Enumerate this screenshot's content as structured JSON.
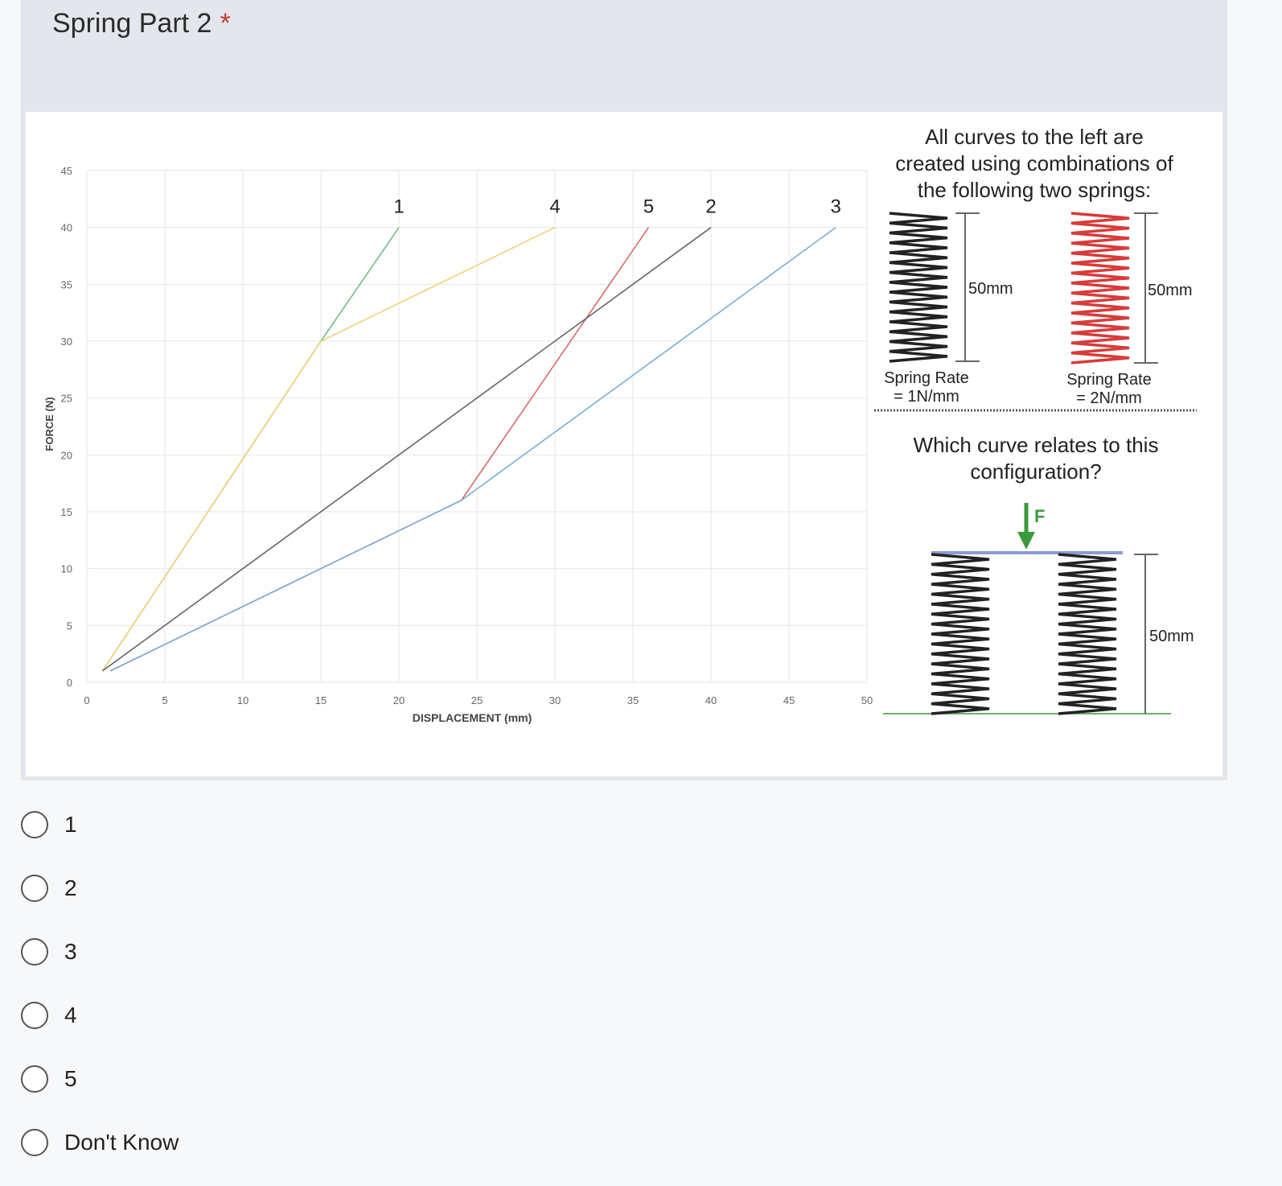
{
  "question": {
    "title": "Spring Part 2",
    "required_marker": "*"
  },
  "chart_data": {
    "type": "line",
    "xlabel": "DISPLACEMENT (mm)",
    "ylabel": "FORCE (N)",
    "xlim": [
      0,
      50
    ],
    "ylim": [
      0,
      45
    ],
    "x_ticks": [
      "0",
      "5",
      "10",
      "15",
      "20",
      "25",
      "30",
      "35",
      "40",
      "45",
      "50"
    ],
    "y_ticks": [
      "0",
      "5",
      "10",
      "15",
      "20",
      "25",
      "30",
      "35",
      "40",
      "45"
    ],
    "grid": true,
    "series": [
      {
        "name": "1",
        "color": "#6ebd85",
        "points": [
          [
            1,
            1
          ],
          [
            15,
            30
          ],
          [
            20,
            40
          ]
        ]
      },
      {
        "name": "4",
        "color": "#f0d27a",
        "points": [
          [
            1,
            1
          ],
          [
            15,
            30
          ],
          [
            30,
            40
          ]
        ]
      },
      {
        "name": "5",
        "color": "#d9696b",
        "points": [
          [
            1.5,
            1
          ],
          [
            24,
            16
          ],
          [
            36,
            40
          ]
        ]
      },
      {
        "name": "2",
        "color": "#666666",
        "points": [
          [
            1,
            1
          ],
          [
            40,
            40
          ]
        ]
      },
      {
        "name": "3",
        "color": "#7aaed8",
        "points": [
          [
            1.5,
            1
          ],
          [
            24,
            16
          ],
          [
            48,
            40
          ]
        ]
      }
    ]
  },
  "info": {
    "intro_lines": [
      "All curves to the left are",
      "created using combinations of",
      "the following two springs:"
    ],
    "spring_a": {
      "length": "50mm",
      "rate_line1": "Spring Rate",
      "rate_line2": "= 1N/mm",
      "color": "#222222"
    },
    "spring_b": {
      "length": "50mm",
      "rate_line1": "Spring Rate",
      "rate_line2": "= 2N/mm",
      "color": "#d93a3a"
    },
    "question_lines": [
      "Which curve relates to this",
      "configuration?"
    ],
    "force_label": "F",
    "config_length": "50mm",
    "colors": {
      "force_arrow": "#3c9a3c",
      "top_plate": "#8e9bd6",
      "ground": "#6ab06a"
    }
  },
  "options": [
    {
      "label": "1"
    },
    {
      "label": "2"
    },
    {
      "label": "3"
    },
    {
      "label": "4"
    },
    {
      "label": "5"
    },
    {
      "label": "Don't Know"
    }
  ]
}
